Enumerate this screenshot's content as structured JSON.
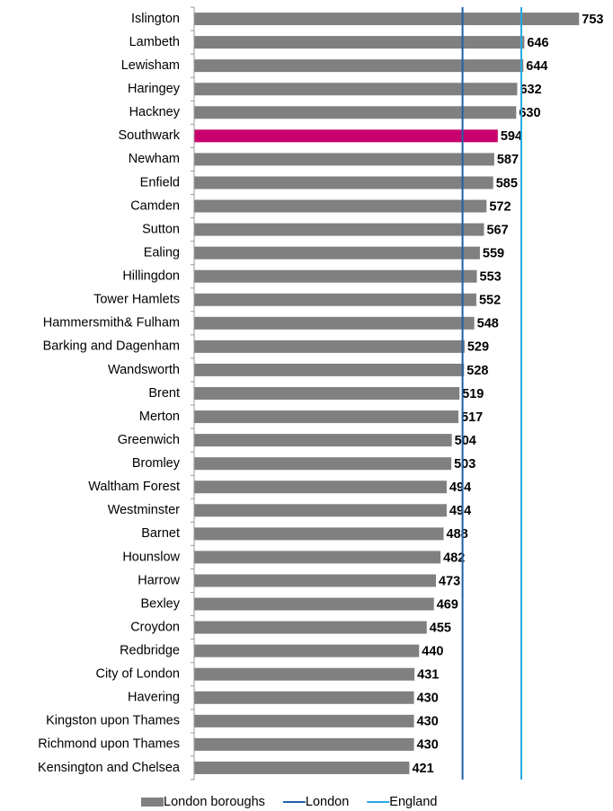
{
  "chart_data": {
    "type": "barh",
    "categories": [
      "Islington",
      "Lambeth",
      "Lewisham",
      "Haringey",
      "Hackney",
      "Southwark",
      "Newham",
      "Enfield",
      "Camden",
      "Sutton",
      "Ealing",
      "Hillingdon",
      "Tower Hamlets",
      "Hammersmith& Fulham",
      "Barking and Dagenham",
      "Wandsworth",
      "Brent",
      "Merton",
      "Greenwich",
      "Bromley",
      "Waltham Forest",
      "Westminster",
      "Barnet",
      "Hounslow",
      "Harrow",
      "Bexley",
      "Croydon",
      "Redbridge",
      "City of London",
      "Havering",
      "Kingston upon Thames",
      "Richmond upon Thames",
      "Kensington and Chelsea"
    ],
    "series": [
      {
        "name": "London boroughs",
        "color": "#808080",
        "values": [
          753,
          646,
          644,
          632,
          630,
          594,
          587,
          585,
          572,
          567,
          559,
          553,
          552,
          548,
          529,
          528,
          519,
          517,
          504,
          503,
          494,
          494,
          488,
          482,
          473,
          469,
          455,
          440,
          431,
          430,
          430,
          430,
          421
        ],
        "colors": [
          "#808080",
          "#808080",
          "#808080",
          "#808080",
          "#808080",
          "#c8006e",
          "#808080",
          "#808080",
          "#808080",
          "#808080",
          "#808080",
          "#808080",
          "#808080",
          "#808080",
          "#808080",
          "#808080",
          "#808080",
          "#808080",
          "#808080",
          "#808080",
          "#808080",
          "#808080",
          "#808080",
          "#808080",
          "#808080",
          "#808080",
          "#808080",
          "#808080",
          "#808080",
          "#808080",
          "#808080",
          "#808080",
          "#808080"
        ]
      }
    ],
    "reference_lines": [
      {
        "name": "London",
        "value": 525,
        "color": "#1f5fa8"
      },
      {
        "name": "England",
        "value": 640,
        "color": "#29a8e0"
      }
    ],
    "xlim": [
      0,
      800
    ]
  }
}
